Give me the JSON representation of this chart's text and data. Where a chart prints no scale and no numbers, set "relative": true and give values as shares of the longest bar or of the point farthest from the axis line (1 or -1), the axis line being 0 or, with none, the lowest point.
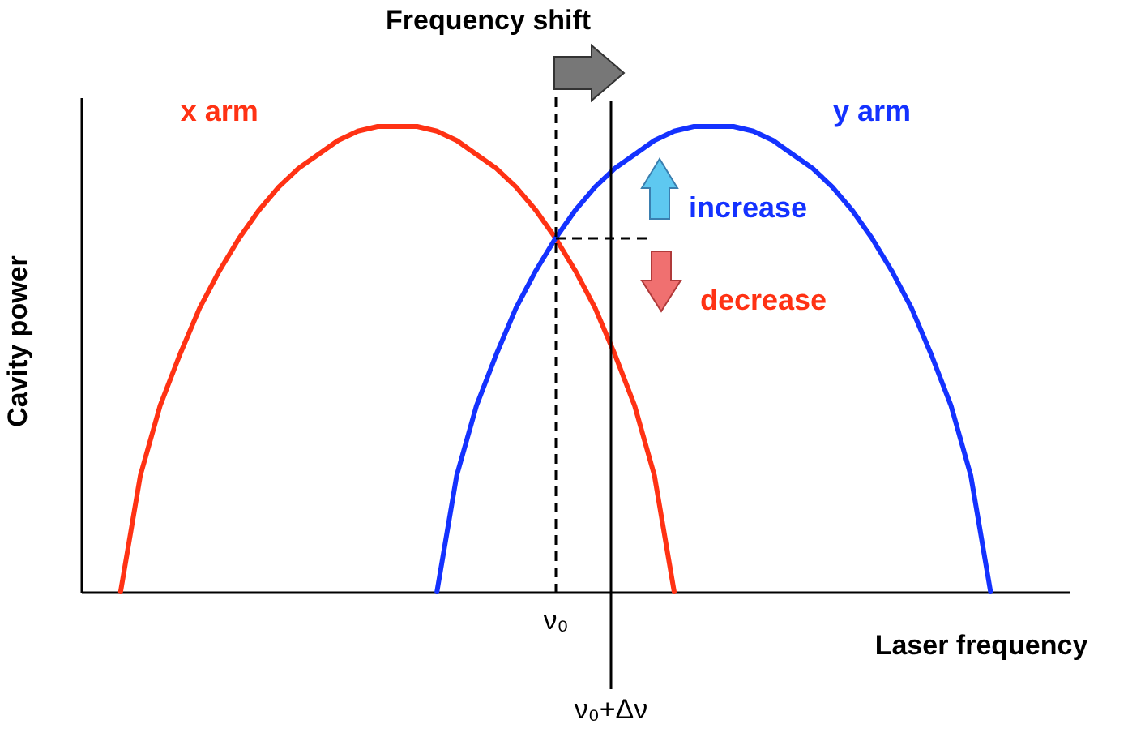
{
  "chart_data": {
    "type": "line",
    "title": "Frequency shift",
    "xlabel": "Laser frequency",
    "ylabel": "Cavity power",
    "relative": true,
    "tick_labels": false,
    "legend": false,
    "marker": "none",
    "line_style": "solid",
    "categories": [
      null,
      null,
      null,
      null,
      null,
      null,
      null,
      null,
      null,
      null,
      null,
      null,
      null,
      null,
      null,
      null,
      null,
      null,
      null,
      null,
      null,
      null,
      null,
      null,
      null,
      null,
      null,
      null,
      null,
      null,
      null,
      null,
      null,
      null,
      null,
      null,
      null,
      null,
      null,
      null,
      null,
      null,
      null,
      null,
      null,
      null,
      null,
      null,
      null,
      null,
      null
    ],
    "series": [
      {
        "name": "x arm",
        "color": "#ff3214",
        "values": [
          null,
          null,
          0,
          0.25,
          0.4,
          0.51,
          0.61,
          0.69,
          0.76,
          0.82,
          0.87,
          0.91,
          0.94,
          0.97,
          0.99,
          1,
          1,
          1,
          0.99,
          0.97,
          0.94,
          0.91,
          0.87,
          0.82,
          0.76,
          0.69,
          0.61,
          0.51,
          0.4,
          0.25,
          0,
          null,
          null,
          null,
          null,
          null,
          null,
          null,
          null,
          null,
          null,
          null,
          null,
          null,
          null,
          null,
          null,
          null,
          null,
          null,
          null
        ]
      },
      {
        "name": "y arm",
        "color": "#1432ff",
        "values": [
          null,
          null,
          null,
          null,
          null,
          null,
          null,
          null,
          null,
          null,
          null,
          null,
          null,
          null,
          null,
          null,
          null,
          null,
          0,
          0.25,
          0.4,
          0.51,
          0.61,
          0.69,
          0.76,
          0.82,
          0.87,
          0.91,
          0.94,
          0.97,
          0.99,
          1,
          1,
          1,
          0.99,
          0.97,
          0.94,
          0.91,
          0.87,
          0.82,
          0.76,
          0.69,
          0.61,
          0.51,
          0.4,
          0.25,
          0,
          null,
          null,
          null,
          null
        ]
      }
    ],
    "annotations": [
      "ν₀",
      "ν₀+Δν",
      "increase",
      "decrease"
    ]
  }
}
